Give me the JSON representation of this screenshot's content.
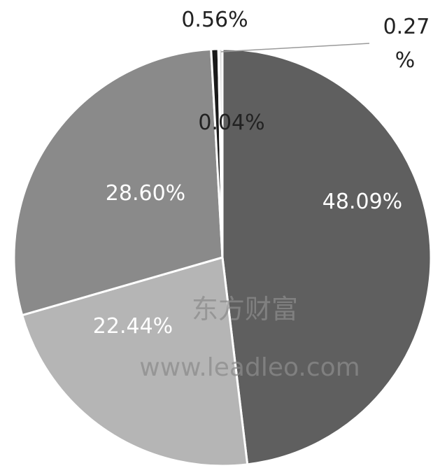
{
  "chart_data": {
    "type": "pie",
    "title": "",
    "start_at": "12 o'clock",
    "direction": "clockwise",
    "slices": [
      {
        "label": "48.09%",
        "value": 48.09,
        "color": "#5f5f5f",
        "label_color": "#ffffff"
      },
      {
        "label": "22.44%",
        "value": 22.44,
        "color": "#b5b5b5",
        "label_color": "#ffffff"
      },
      {
        "label": "28.60%",
        "value": 28.6,
        "color": "#8a8a8a",
        "label_color": "#ffffff"
      },
      {
        "label": "0.56%",
        "value": 0.56,
        "color": "#1a1a1a",
        "label_color": "#222222"
      },
      {
        "label": "0.04%",
        "value": 0.04,
        "color": "#2b2b2b",
        "label_color": "#222222"
      },
      {
        "label": "0.27 %",
        "label_lines": [
          "0.27",
          "%"
        ],
        "value": 0.27,
        "color": "#d9d9d9",
        "label_color": "#222222"
      }
    ]
  },
  "watermark": {
    "line1": "东方财富",
    "line2": "www.leadleo.com"
  }
}
